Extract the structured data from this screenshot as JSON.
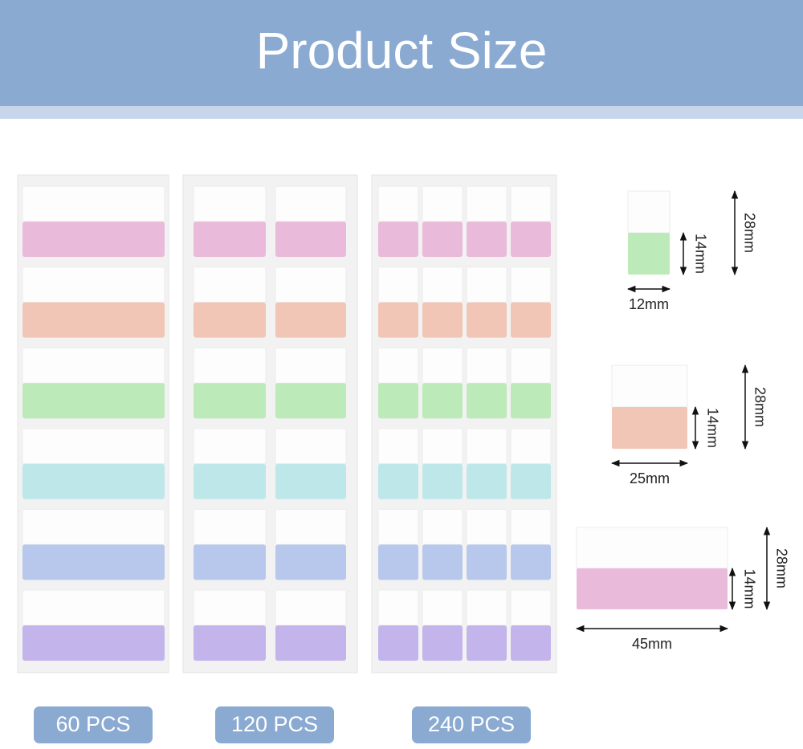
{
  "header": {
    "title": "Product Size"
  },
  "sheets": [
    {
      "label": "60 PCS"
    },
    {
      "label": "120 PCS"
    },
    {
      "label": "240 PCS"
    }
  ],
  "samples": [
    {
      "height": "28mm",
      "color_height": "14mm",
      "width": "12mm"
    },
    {
      "height": "28mm",
      "color_height": "14mm",
      "width": "25mm"
    },
    {
      "height": "28mm",
      "color_height": "14mm",
      "width": "45mm"
    }
  ]
}
